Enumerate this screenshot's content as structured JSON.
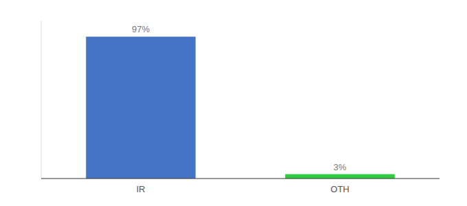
{
  "chart_data": {
    "type": "bar",
    "categories": [
      "IR",
      "OTH"
    ],
    "values": [
      97,
      3
    ],
    "value_labels": [
      "97%",
      "3%"
    ],
    "colors": [
      "#4472c4",
      "#2ecc40"
    ],
    "ylim": [
      0,
      108
    ],
    "data_labels": true,
    "tick_labels": "x",
    "grid": false
  }
}
